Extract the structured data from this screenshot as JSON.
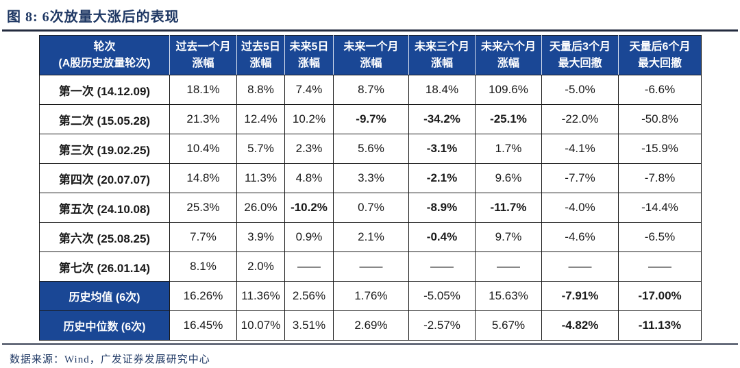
{
  "title": "图 8: 6次放量大涨后的表现",
  "source": "数据来源：Wind，广发证券发展研究中心",
  "colors": {
    "header_bg": "#1A4795",
    "summary_label_bg": "#1A4795",
    "highlight_gold_bg": "#C29C5D",
    "negative_green_text": "#5FA553",
    "title_navy": "#1F3864",
    "cell_border": "#1A1A1A"
  },
  "chart_data": {
    "type": "table",
    "title": "图 8: 6次放量大涨后的表现",
    "columns": [
      {
        "line1": "轮次",
        "line2": "(A股历史放量轮次)"
      },
      {
        "line1": "过去一个月",
        "line2": "涨幅"
      },
      {
        "line1": "过去5日",
        "line2": "涨幅"
      },
      {
        "line1": "未来5日",
        "line2": "涨幅"
      },
      {
        "line1": "未来一个月",
        "line2": "涨幅"
      },
      {
        "line1": "未来三个月",
        "line2": "涨幅"
      },
      {
        "line1": "未来六个月",
        "line2": "涨幅"
      },
      {
        "line1": "天量后3个月",
        "line2": "最大回撤"
      },
      {
        "line1": "天量后6个月",
        "line2": "最大回撤"
      }
    ],
    "rows": [
      {
        "label": "第一次 (14.12.09)",
        "summary": false,
        "cells": [
          {
            "t": "18.1%"
          },
          {
            "t": "8.8%"
          },
          {
            "t": "7.4%"
          },
          {
            "t": "8.7%"
          },
          {
            "t": "18.4%"
          },
          {
            "t": "109.6%"
          },
          {
            "t": "-5.0%"
          },
          {
            "t": "-6.6%"
          }
        ]
      },
      {
        "label": "第二次 (15.05.28)",
        "summary": false,
        "cells": [
          {
            "t": "21.3%"
          },
          {
            "t": "12.4%"
          },
          {
            "t": "10.2%"
          },
          {
            "t": "-9.7%",
            "s": "green"
          },
          {
            "t": "-34.2%",
            "s": "green"
          },
          {
            "t": "-25.1%",
            "s": "green"
          },
          {
            "t": "-22.0%"
          },
          {
            "t": "-50.8%"
          }
        ]
      },
      {
        "label": "第三次 (19.02.25)",
        "summary": false,
        "cells": [
          {
            "t": "10.4%"
          },
          {
            "t": "5.7%"
          },
          {
            "t": "2.3%"
          },
          {
            "t": "5.6%"
          },
          {
            "t": "-3.1%",
            "s": "green"
          },
          {
            "t": "1.7%"
          },
          {
            "t": "-4.1%"
          },
          {
            "t": "-15.9%"
          }
        ]
      },
      {
        "label": "第四次 (20.07.07)",
        "summary": false,
        "cells": [
          {
            "t": "14.8%"
          },
          {
            "t": "11.3%"
          },
          {
            "t": "4.8%"
          },
          {
            "t": "3.3%"
          },
          {
            "t": "-2.1%",
            "s": "green"
          },
          {
            "t": "9.6%"
          },
          {
            "t": "-7.7%"
          },
          {
            "t": "-7.8%"
          }
        ]
      },
      {
        "label": "第五次 (24.10.08)",
        "summary": false,
        "cells": [
          {
            "t": "25.3%"
          },
          {
            "t": "26.0%"
          },
          {
            "t": "-10.2%",
            "s": "green"
          },
          {
            "t": "0.7%"
          },
          {
            "t": "-8.9%",
            "s": "green"
          },
          {
            "t": "-11.7%",
            "s": "green"
          },
          {
            "t": "-4.0%"
          },
          {
            "t": "-14.4%"
          }
        ]
      },
      {
        "label": "第六次 (25.08.25)",
        "summary": false,
        "cells": [
          {
            "t": "7.7%"
          },
          {
            "t": "3.9%"
          },
          {
            "t": "0.9%"
          },
          {
            "t": "2.1%"
          },
          {
            "t": "-0.4%",
            "s": "green"
          },
          {
            "t": "9.7%"
          },
          {
            "t": "-4.6%"
          },
          {
            "t": "-6.5%"
          }
        ]
      },
      {
        "label": "第七次 (26.01.14)",
        "summary": false,
        "cells": [
          {
            "t": "8.1%"
          },
          {
            "t": "2.0%"
          },
          {
            "t": "——"
          },
          {
            "t": "——"
          },
          {
            "t": "——"
          },
          {
            "t": "——"
          },
          {
            "t": "——"
          },
          {
            "t": "——"
          }
        ]
      },
      {
        "label": "历史均值 (6次)",
        "summary": true,
        "cells": [
          {
            "t": "16.26%"
          },
          {
            "t": "11.36%"
          },
          {
            "t": "2.56%"
          },
          {
            "t": "1.76%"
          },
          {
            "t": "-5.05%"
          },
          {
            "t": "15.63%"
          },
          {
            "t": "-7.91%",
            "s": "gold"
          },
          {
            "t": "-17.00%",
            "s": "gold"
          }
        ]
      },
      {
        "label": "历史中位数 (6次)",
        "summary": true,
        "cells": [
          {
            "t": "16.45%"
          },
          {
            "t": "10.07%"
          },
          {
            "t": "3.51%"
          },
          {
            "t": "2.69%"
          },
          {
            "t": "-2.57%"
          },
          {
            "t": "5.67%"
          },
          {
            "t": "-4.82%",
            "s": "gold"
          },
          {
            "t": "-11.13%",
            "s": "gold"
          }
        ]
      }
    ]
  }
}
